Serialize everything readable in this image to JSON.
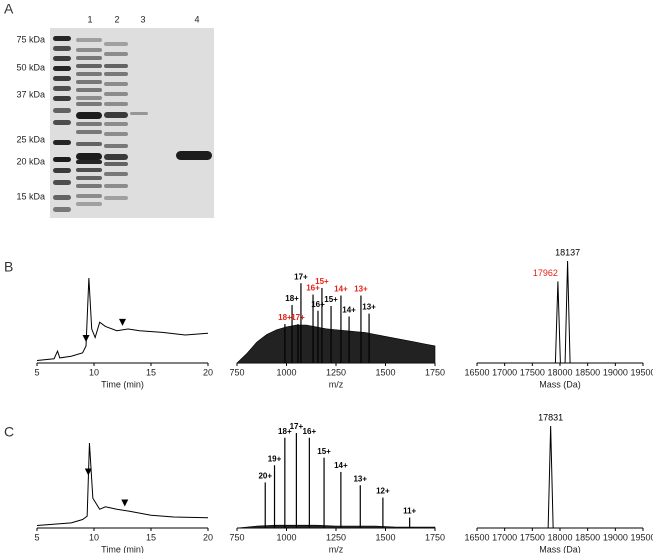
{
  "panel_a": {
    "label": "A",
    "lanes": [
      "1",
      "2",
      "3",
      "4"
    ],
    "markers": [
      "75 kDa",
      "50 kDa",
      "37 kDa",
      "25 kDa",
      "20 kDa",
      "15 kDa"
    ]
  },
  "panel_b": {
    "label": "B",
    "chromatogram": {
      "xlim": [
        5,
        20
      ],
      "xticks": [
        5,
        10,
        15,
        20
      ],
      "xlabel": "Time (min)",
      "ylim": [
        0,
        100
      ],
      "trace": {
        "x": [
          5,
          6.5,
          6.8,
          7.0,
          8,
          9,
          9.3,
          9.55,
          9.8,
          10.1,
          10.5,
          11,
          12,
          13,
          14,
          16,
          18,
          20
        ],
        "y": [
          3,
          5,
          14,
          6,
          8,
          12,
          20,
          100,
          40,
          30,
          48,
          43,
          38,
          40,
          38,
          36,
          33,
          35
        ]
      },
      "arrows": [
        9.3,
        12.5
      ]
    },
    "spectrum": {
      "xlim": [
        750,
        1750
      ],
      "xticks": [
        750,
        1000,
        1250,
        1500,
        1750
      ],
      "xlabel": "m/z",
      "ylim": [
        0,
        100
      ],
      "envelope": {
        "x": [
          750,
          800,
          850,
          900,
          950,
          1000,
          1050,
          1100,
          1150,
          1200,
          1250,
          1300,
          1350,
          1400,
          1450,
          1500,
          1550,
          1600,
          1650,
          1700,
          1750
        ],
        "y": [
          0,
          10,
          22,
          30,
          35,
          38,
          40,
          40,
          38,
          36,
          35,
          34,
          33,
          32,
          30,
          28,
          26,
          24,
          22,
          20,
          18
        ]
      },
      "peaks": [
        {
          "label": "18+",
          "mz": 992,
          "intensity": 41,
          "color": "#e32119"
        },
        {
          "label": "18+",
          "mz": 1028,
          "intensity": 61,
          "color": "#000000"
        },
        {
          "label": "17+",
          "mz": 1058,
          "intensity": 41,
          "color": "#e32119"
        },
        {
          "label": "17+",
          "mz": 1073,
          "intensity": 84,
          "color": "#000000"
        },
        {
          "label": "16+",
          "mz": 1134,
          "intensity": 72,
          "color": "#e32119"
        },
        {
          "label": "16+",
          "mz": 1159,
          "intensity": 55,
          "color": "#000000"
        },
        {
          "label": "15+",
          "mz": 1179,
          "intensity": 79,
          "color": "#e32119"
        },
        {
          "label": "15+",
          "mz": 1225,
          "intensity": 60,
          "color": "#000000"
        },
        {
          "label": "14+",
          "mz": 1275,
          "intensity": 71,
          "color": "#e32119"
        },
        {
          "label": "14+",
          "mz": 1316,
          "intensity": 49,
          "color": "#000000"
        },
        {
          "label": "13+",
          "mz": 1376,
          "intensity": 71,
          "color": "#e32119"
        },
        {
          "label": "13+",
          "mz": 1417,
          "intensity": 52,
          "color": "#000000"
        }
      ]
    },
    "deconvolution": {
      "xlim": [
        16500,
        19500
      ],
      "xticks": [
        16500,
        17000,
        17500,
        18000,
        18500,
        19000,
        19500
      ],
      "xlabel": "Mass (Da)",
      "ylim": [
        0,
        100
      ],
      "peaks": [
        {
          "value": 17962,
          "intensity": 80,
          "color": "#e32119"
        },
        {
          "value": 18137,
          "intensity": 100,
          "color": "#000000"
        }
      ]
    }
  },
  "panel_c": {
    "label": "C",
    "chromatogram": {
      "xlim": [
        5,
        20
      ],
      "xticks": [
        5,
        10,
        15,
        20
      ],
      "xlabel": "Time (min)",
      "ylim": [
        0,
        100
      ],
      "trace": {
        "x": [
          5,
          8,
          9,
          9.4,
          9.6,
          9.9,
          10.5,
          11,
          12,
          13,
          15,
          17,
          20
        ],
        "y": [
          3,
          6,
          10,
          14,
          100,
          35,
          22,
          25,
          22,
          20,
          15,
          13,
          12
        ]
      },
      "arrows": [
        9.5,
        12.7
      ]
    },
    "spectrum": {
      "xlim": [
        750,
        1750
      ],
      "xticks": [
        750,
        1000,
        1250,
        1500,
        1750
      ],
      "xlabel": "m/z",
      "ylim": [
        0,
        100
      ],
      "envelope": {
        "x": [
          750,
          850,
          950,
          1050,
          1150,
          1250,
          1350,
          1450,
          1550,
          1650,
          1750
        ],
        "y": [
          0,
          2,
          3,
          3,
          3,
          2,
          2,
          2,
          1,
          1,
          1
        ]
      },
      "peaks": [
        {
          "label": "20+",
          "mz": 892.6,
          "intensity": 48,
          "color": "#000000"
        },
        {
          "label": "19+",
          "mz": 939.5,
          "intensity": 66,
          "color": "#000000"
        },
        {
          "label": "18+",
          "mz": 991.6,
          "intensity": 95,
          "color": "#000000"
        },
        {
          "label": "17+",
          "mz": 1049.9,
          "intensity": 100,
          "color": "#000000"
        },
        {
          "label": "16+",
          "mz": 1115.4,
          "intensity": 95,
          "color": "#000000"
        },
        {
          "label": "15+",
          "mz": 1189.7,
          "intensity": 74,
          "color": "#000000"
        },
        {
          "label": "14+",
          "mz": 1274.6,
          "intensity": 59,
          "color": "#000000"
        },
        {
          "label": "13+",
          "mz": 1372.6,
          "intensity": 45,
          "color": "#000000"
        },
        {
          "label": "12+",
          "mz": 1486.9,
          "intensity": 32,
          "color": "#000000"
        },
        {
          "label": "11+",
          "mz": 1622.0,
          "intensity": 11,
          "color": "#000000"
        }
      ]
    },
    "deconvolution": {
      "xlim": [
        16500,
        19500
      ],
      "xticks": [
        16500,
        17000,
        17500,
        18000,
        18500,
        19000,
        19500
      ],
      "xlabel": "Mass (Da)",
      "ylim": [
        0,
        100
      ],
      "peaks": [
        {
          "value": 17831,
          "intensity": 100,
          "color": "#000000"
        }
      ]
    }
  }
}
